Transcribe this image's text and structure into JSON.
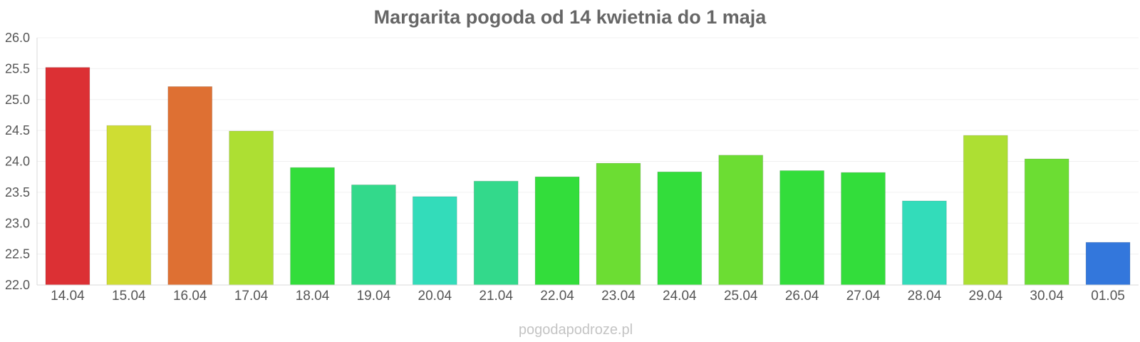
{
  "watermark": "pogodapodroze.pl",
  "chart_data": {
    "type": "bar",
    "title": "Margarita pogoda od 14 kwietnia do 1 maja",
    "xlabel": "",
    "ylabel": "",
    "ylim": [
      22.0,
      26.0
    ],
    "yticks": [
      "22.0",
      "22.5",
      "23.0",
      "23.5",
      "24.0",
      "24.5",
      "25.0",
      "25.5",
      "26.0"
    ],
    "categories": [
      "14.04",
      "15.04",
      "16.04",
      "17.04",
      "18.04",
      "19.04",
      "20.04",
      "21.04",
      "22.04",
      "23.04",
      "24.04",
      "25.04",
      "26.04",
      "27.04",
      "28.04",
      "29.04",
      "30.04",
      "01.05"
    ],
    "values": [
      25.52,
      24.58,
      25.21,
      24.49,
      23.9,
      23.62,
      23.43,
      23.68,
      23.75,
      23.97,
      23.83,
      24.1,
      23.85,
      23.82,
      23.36,
      24.42,
      24.04,
      22.69
    ],
    "colors": [
      "#dc3034",
      "#cfdd33",
      "#de7033",
      "#addf33",
      "#33dd3b",
      "#33d98b",
      "#33dcba",
      "#33d98b",
      "#33dd3b",
      "#6cdd33",
      "#33dd3b",
      "#6cdd33",
      "#33dd3b",
      "#33dd3b",
      "#33dcba",
      "#addf33",
      "#6cdd33",
      "#3377dc"
    ],
    "grid": true,
    "legend": "none"
  }
}
